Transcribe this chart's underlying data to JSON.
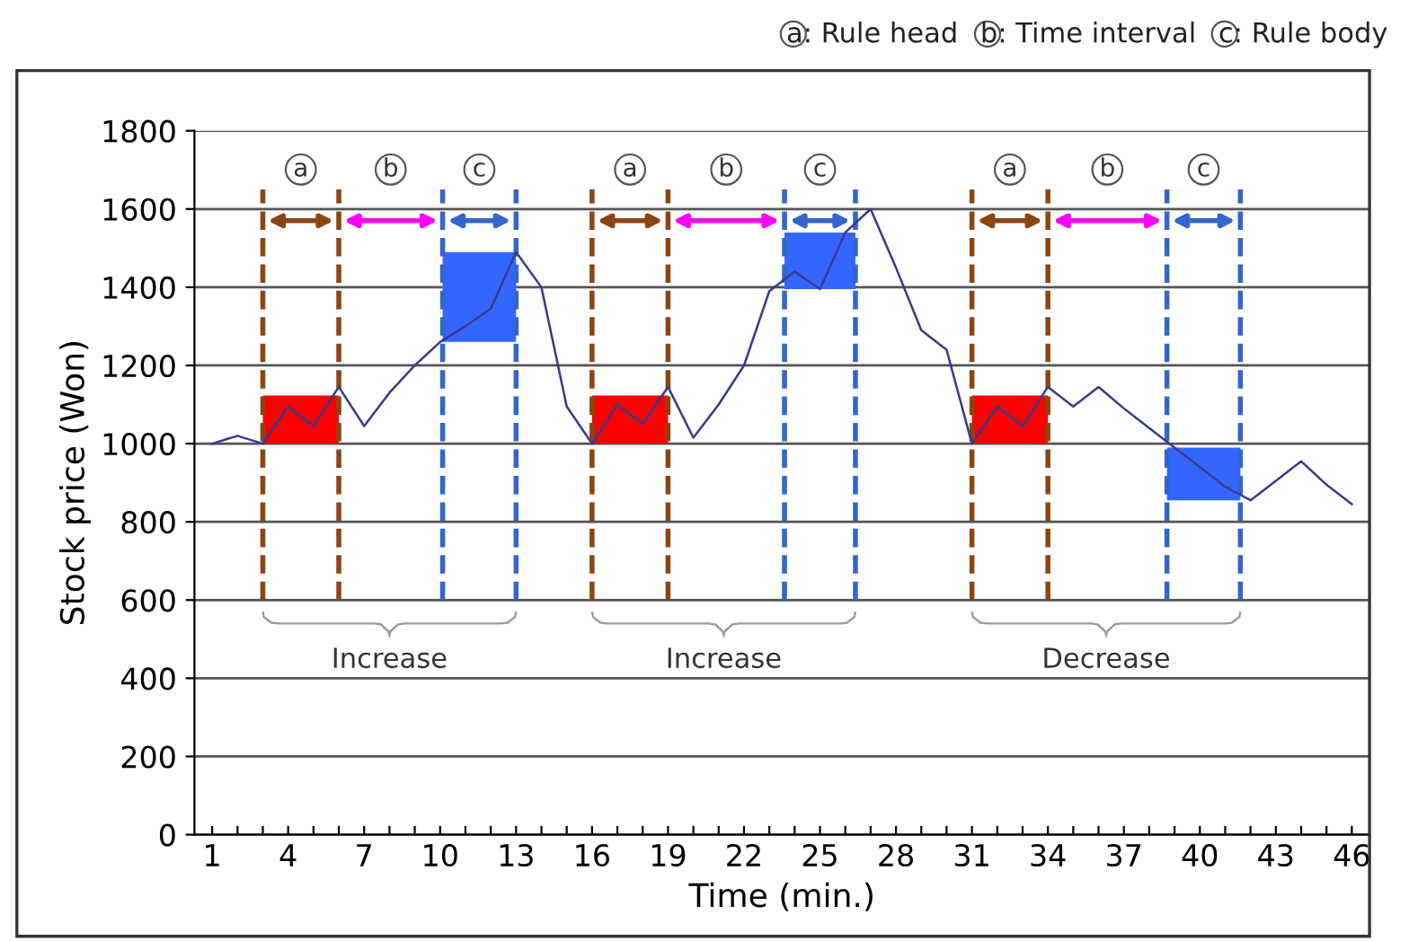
{
  "chart_data": {
    "type": "line",
    "xlabel": "Time (min.)",
    "ylabel": "Stock price (Won)",
    "x": [
      1,
      2,
      3,
      4,
      5,
      6,
      7,
      8,
      9,
      10,
      11,
      12,
      13,
      14,
      15,
      16,
      17,
      18,
      19,
      20,
      21,
      22,
      23,
      24,
      25,
      26,
      27,
      28,
      29,
      30,
      31,
      32,
      33,
      34,
      35,
      36,
      37,
      38,
      39,
      40,
      41,
      42,
      43,
      44,
      45,
      46
    ],
    "series": [
      {
        "color": "#3a3a8c",
        "values": [
          1000,
          1020,
          1000,
          1095,
          1045,
          1145,
          1045,
          1130,
          1200,
          1260,
          1300,
          1345,
          1490,
          1400,
          1095,
          1000,
          1100,
          1050,
          1145,
          1015,
          1100,
          1200,
          1390,
          1440,
          1395,
          1540,
          1600,
          1450,
          1290,
          1240,
          1000,
          1095,
          1045,
          1145,
          1095,
          1145,
          1090,
          1040,
          990,
          940,
          890,
          855,
          905,
          955,
          895,
          845
        ]
      }
    ],
    "xlim": [
      0.3,
      46.7
    ],
    "ylim": [
      0,
      1800
    ],
    "xticks": [
      1,
      {
        "value": 2,
        "label": null
      },
      {
        "value": 3,
        "label": null
      },
      4,
      {
        "value": 5,
        "label": null
      },
      {
        "value": 6,
        "label": null
      },
      7,
      {
        "value": 8,
        "label": null
      },
      {
        "value": 9,
        "label": null
      },
      10,
      {
        "value": 11,
        "label": null
      },
      {
        "value": 12,
        "label": null
      },
      13,
      {
        "value": 14,
        "label": null
      },
      {
        "value": 15,
        "label": null
      },
      16,
      {
        "value": 17,
        "label": null
      },
      {
        "value": 18,
        "label": null
      },
      19,
      {
        "value": 20,
        "label": null
      },
      {
        "value": 21,
        "label": null
      },
      22,
      {
        "value": 23,
        "label": null
      },
      {
        "value": 24,
        "label": null
      },
      25,
      {
        "value": 26,
        "label": null
      },
      {
        "value": 27,
        "label": null
      },
      28,
      {
        "value": 29,
        "label": null
      },
      {
        "value": 30,
        "label": null
      },
      31,
      {
        "value": 32,
        "label": null
      },
      {
        "value": 33,
        "label": null
      },
      34,
      {
        "value": 35,
        "label": null
      },
      {
        "value": 36,
        "label": null
      },
      37,
      {
        "value": 38,
        "label": null
      },
      {
        "value": 39,
        "label": null
      },
      40,
      {
        "value": 41,
        "label": null
      },
      {
        "value": 42,
        "label": null
      },
      43,
      {
        "value": 44,
        "label": null
      },
      {
        "value": 45,
        "label": null
      },
      46
    ],
    "yticks": [
      0,
      200,
      400,
      600,
      800,
      1000,
      1200,
      1400,
      1600,
      1800
    ],
    "grid": "y",
    "marker": "none",
    "line_style": "solid",
    "ref_lines": [
      {
        "axis": "x",
        "value": 3,
        "color": "#8b4513",
        "line_style": "dashed"
      },
      {
        "axis": "x",
        "value": 6,
        "color": "#8b4513",
        "line_style": "dashed"
      },
      {
        "axis": "x",
        "value": 10.1,
        "color": "#3366cc",
        "line_style": "dashed"
      },
      {
        "axis": "x",
        "value": 13,
        "color": "#3366cc",
        "line_style": "dashed"
      },
      {
        "axis": "x",
        "value": 16,
        "color": "#8b4513",
        "line_style": "dashed"
      },
      {
        "axis": "x",
        "value": 19,
        "color": "#8b4513",
        "line_style": "dashed"
      },
      {
        "axis": "x",
        "value": 23.6,
        "color": "#3366cc",
        "line_style": "dashed"
      },
      {
        "axis": "x",
        "value": 26.4,
        "color": "#3366cc",
        "line_style": "dashed"
      },
      {
        "axis": "x",
        "value": 31,
        "color": "#8b4513",
        "line_style": "dashed"
      },
      {
        "axis": "x",
        "value": 34,
        "color": "#8b4513",
        "line_style": "dashed"
      },
      {
        "axis": "x",
        "value": 38.7,
        "color": "#3366cc",
        "line_style": "dashed"
      },
      {
        "axis": "x",
        "value": 41.6,
        "color": "#3366cc",
        "line_style": "dashed"
      }
    ],
    "annotations": [
      "a: Rule head",
      "b: Time interval",
      "c: Rule body",
      "a",
      "b",
      "c",
      "a",
      "b",
      "c",
      "a",
      "b",
      "c",
      "Increase",
      "Increase",
      "Decrease"
    ]
  }
}
